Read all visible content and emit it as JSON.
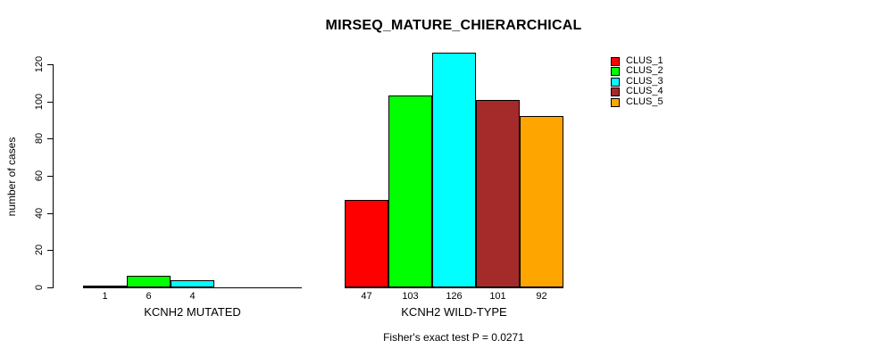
{
  "chart_data": {
    "type": "bar",
    "title": "MIRSEQ_MATURE_CHIERARCHICAL",
    "subtitle": "Fisher's exact test P = 0.0271",
    "ylabel": "number of cases",
    "xlabel": "",
    "ylim": [
      0,
      126
    ],
    "yticks": [
      0,
      20,
      40,
      60,
      80,
      100,
      120
    ],
    "grid": false,
    "legend_position": "right",
    "axis_color": "#000000",
    "background_color": "#FFFFFF",
    "series": [
      {
        "name": "CLUS_1",
        "color": "#FF0000"
      },
      {
        "name": "CLUS_2",
        "color": "#00FF00"
      },
      {
        "name": "CLUS_3",
        "color": "#00FFFF"
      },
      {
        "name": "CLUS_4",
        "color": "#A52A2A"
      },
      {
        "name": "CLUS_5",
        "color": "#FFA500"
      }
    ],
    "groups": [
      {
        "label": "KCNH2 MUTATED",
        "values": [
          1,
          6,
          4,
          0,
          0
        ],
        "bar_labels": [
          "1",
          "6",
          "4",
          "",
          ""
        ]
      },
      {
        "label": "KCNH2 WILD-TYPE",
        "values": [
          47,
          103,
          126,
          101,
          92
        ],
        "bar_labels": [
          "47",
          "103",
          "126",
          "101",
          "92"
        ]
      }
    ]
  }
}
